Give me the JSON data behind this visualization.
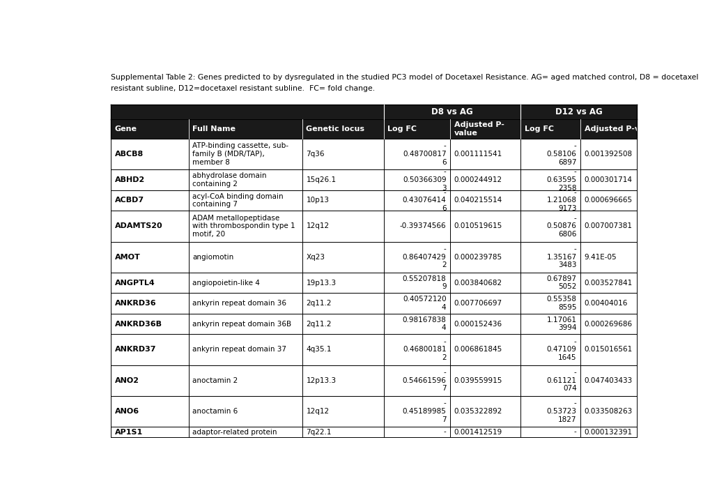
{
  "caption_line1": "Supplemental Table 2: Genes predicted to by dysregulated in the studied PC3 model of Docetaxel Resistance. AG= aged matched control, D8 = docetaxel",
  "caption_line2": "resistant subline, D12=docetaxel resistant subline.  FC= fold change.",
  "rows": [
    [
      "ABCB8",
      "ATP-binding cassette, sub-\nfamily B (MDR/TAP),\nmember 8",
      "7q36",
      "-\n0.48700817\n6",
      "0.001111541",
      "-\n0.58106\n6897",
      "0.001392508"
    ],
    [
      "ABHD2",
      "abhydrolase domain\ncontaining 2",
      "15q26.1",
      "-\n0.50366309\n3",
      "0.000244912",
      "-\n0.63595\n2358",
      "0.000301714"
    ],
    [
      "ACBD7",
      "acyl-CoA binding domain\ncontaining 7",
      "10p13",
      "-\n0.43076414\n6",
      "0.040215514",
      "-\n1.21068\n9173",
      "0.000696665"
    ],
    [
      "ADAMTS20",
      "ADAM metallopeptidase\nwith thrombospondin type 1\nmotif, 20",
      "12q12",
      "-0.39374566",
      "0.010519615",
      "-\n0.50876\n6806",
      "0.007007381"
    ],
    [
      "AMOT",
      "angiomotin",
      "Xq23",
      "-\n0.86407429\n2",
      "0.000239785",
      "-\n1.35167\n3483",
      "9.41E-05"
    ],
    [
      "ANGPTL4",
      "angiopoietin-like 4",
      "19p13.3",
      "0.55207818\n9",
      "0.003840682",
      "0.67897\n5052",
      "0.003527841"
    ],
    [
      "ANKRD36",
      "ankyrin repeat domain 36",
      "2q11.2",
      "0.40572120\n4",
      "0.007706697",
      "0.55358\n8595",
      "0.00404016"
    ],
    [
      "ANKRD36B",
      "ankyrin repeat domain 36B",
      "2q11.2",
      "0.98167838\n4",
      "0.000152436",
      "1.17061\n3994",
      "0.000269686"
    ],
    [
      "ANKRD37",
      "ankyrin repeat domain 37",
      "4q35.1",
      "-\n0.46800181\n2",
      "0.006861845",
      "-\n0.47109\n1645",
      "0.015016561"
    ],
    [
      "ANO2",
      "anoctamin 2",
      "12p13.3",
      "-\n0.54661596\n7",
      "0.039559915",
      "-\n0.61121\n074",
      "0.047403433"
    ],
    [
      "ANO6",
      "anoctamin 6",
      "12q12",
      "-\n0.45189985\n7",
      "0.035322892",
      "-\n0.53723\n1827",
      "0.033508263"
    ],
    [
      "AP1S1",
      "adaptor-related protein",
      "7q22.1",
      "-",
      "0.001412519",
      "-",
      "0.000132391"
    ]
  ],
  "bg_color": "#ffffff",
  "header_bg": "#1a1a1a",
  "border_color": "#000000"
}
